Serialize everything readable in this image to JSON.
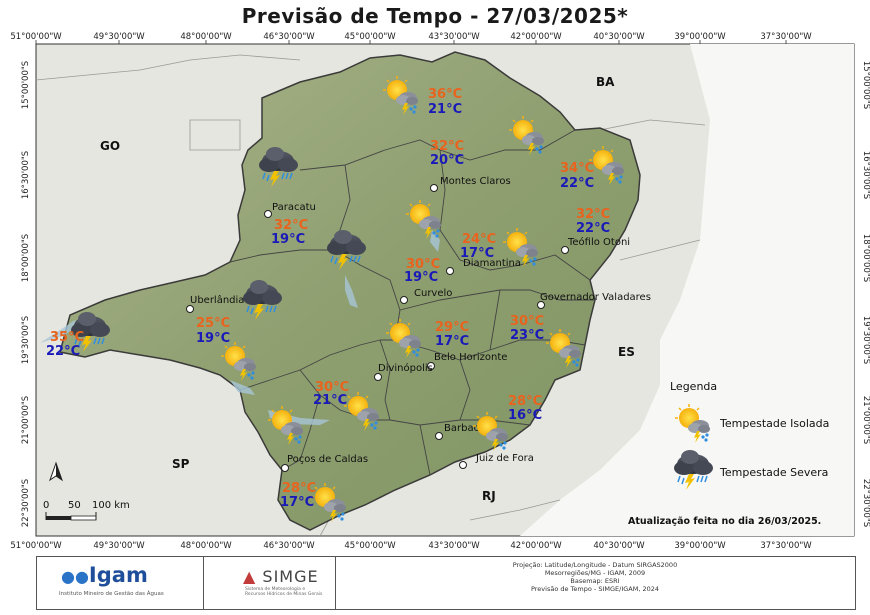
{
  "title": "Previsão de Tempo - 27/03/2025*",
  "update_note": "Atualização feita no dia 26/03/2025.",
  "lon_labels": [
    "51°00'00\"W",
    "49°30'00\"W",
    "48°00'00\"W",
    "46°30'00\"W",
    "45°00'00\"W",
    "43°30'00\"W",
    "42°00'00\"W",
    "40°30'00\"W",
    "39°00'00\"W",
    "37°30'00\"W"
  ],
  "lat_labels": [
    "15°00'00\"S",
    "16°30'00\"S",
    "18°00'00\"S",
    "19°30'00\"S",
    "21°00'00\"S",
    "22°30'00\"S"
  ],
  "states": {
    "bahia": "BA",
    "goias": "GO",
    "sao_paulo": "SP",
    "espirito_santo": "ES",
    "rio_de_janeiro": "RJ"
  },
  "cities": [
    {
      "name": "Montes Claros",
      "key": "montes-claros"
    },
    {
      "name": "Paracatu",
      "key": "paracatu"
    },
    {
      "name": "Teófilo Otoni",
      "key": "teofilo-otoni"
    },
    {
      "name": "Diamantina",
      "key": "diamantina"
    },
    {
      "name": "Curvelo",
      "key": "curvelo"
    },
    {
      "name": "Uberlândia",
      "key": "uberlandia"
    },
    {
      "name": "Governador Valadares",
      "key": "governador-valadares"
    },
    {
      "name": "Belo Horizonte",
      "key": "belo-horizonte"
    },
    {
      "name": "Divinópolis",
      "key": "divinopolis"
    },
    {
      "name": "Barbacena",
      "key": "barbacena"
    },
    {
      "name": "Juiz de Fora",
      "key": "juiz-de-fora"
    },
    {
      "name": "Poços de Caldas",
      "key": "pocos-de-caldas"
    }
  ],
  "forecasts": [
    {
      "max": "36°C",
      "min": "21°C",
      "icon": "isolated-storm-icon"
    },
    {
      "max": "32°C",
      "min": "20°C",
      "icon": "isolated-storm-icon"
    },
    {
      "max": "34°C",
      "min": "22°C",
      "icon": "isolated-storm-icon"
    },
    {
      "max": "32°C",
      "min": "22°C",
      "icon": "none"
    },
    {
      "max": "32°C",
      "min": "19°C",
      "icon": "severe-storm-icon"
    },
    {
      "max": "24°C",
      "min": "17°C",
      "icon": "isolated-storm-icon"
    },
    {
      "max": "30°C",
      "min": "19°C",
      "icon": "isolated-storm-icon"
    },
    {
      "max": "",
      "min": "",
      "icon": "severe-storm-icon"
    },
    {
      "max": "35°C",
      "min": "22°C",
      "icon": "severe-storm-icon"
    },
    {
      "max": "25°C",
      "min": "19°C",
      "icon": "severe-storm-icon"
    },
    {
      "max": "29°C",
      "min": "17°C",
      "icon": "isolated-storm-icon"
    },
    {
      "max": "30°C",
      "min": "23°C",
      "icon": "isolated-storm-icon"
    },
    {
      "max": "",
      "min": "",
      "icon": "isolated-storm-icon"
    },
    {
      "max": "30°C",
      "min": "21°C",
      "icon": "isolated-storm-icon"
    },
    {
      "max": "28°C",
      "min": "16°C",
      "icon": "isolated-storm-icon"
    },
    {
      "max": "",
      "min": "",
      "icon": "isolated-storm-icon"
    },
    {
      "max": "28°C",
      "min": "17°C",
      "icon": "isolated-storm-icon"
    }
  ],
  "legend": {
    "title": "Legenda",
    "items": [
      {
        "label": "Tempestade Isolada",
        "icon": "isolated-storm-icon"
      },
      {
        "label": "Tempestade Severa",
        "icon": "severe-storm-icon"
      }
    ]
  },
  "scale_bar": {
    "labels": [
      "0",
      "50",
      "100 km"
    ]
  },
  "north_arrow": "N",
  "footer": {
    "igam_name": "Igam",
    "igam_subtitle": "Instituto Mineiro de Gestão das Águas",
    "simge_name": "SIMGE",
    "simge_subtitle": "Sistema de Meteorologia e Recursos Hídricos de Minas Gerais",
    "credits": [
      "Projeção: Latitude/Longitude - Datum SIRGAS2000",
      "Mesorregiões/MG - IGAM, 2009",
      "Basemap: ESRI",
      "Previsão de Tempo - SIMGE/IGAM, 2024"
    ]
  },
  "colors": {
    "max_temp": "#e8641e",
    "min_temp": "#1a1ab8",
    "state_fill": "#9aa87a",
    "background_land": "#e9e9e4",
    "sea": "#ffffff"
  }
}
